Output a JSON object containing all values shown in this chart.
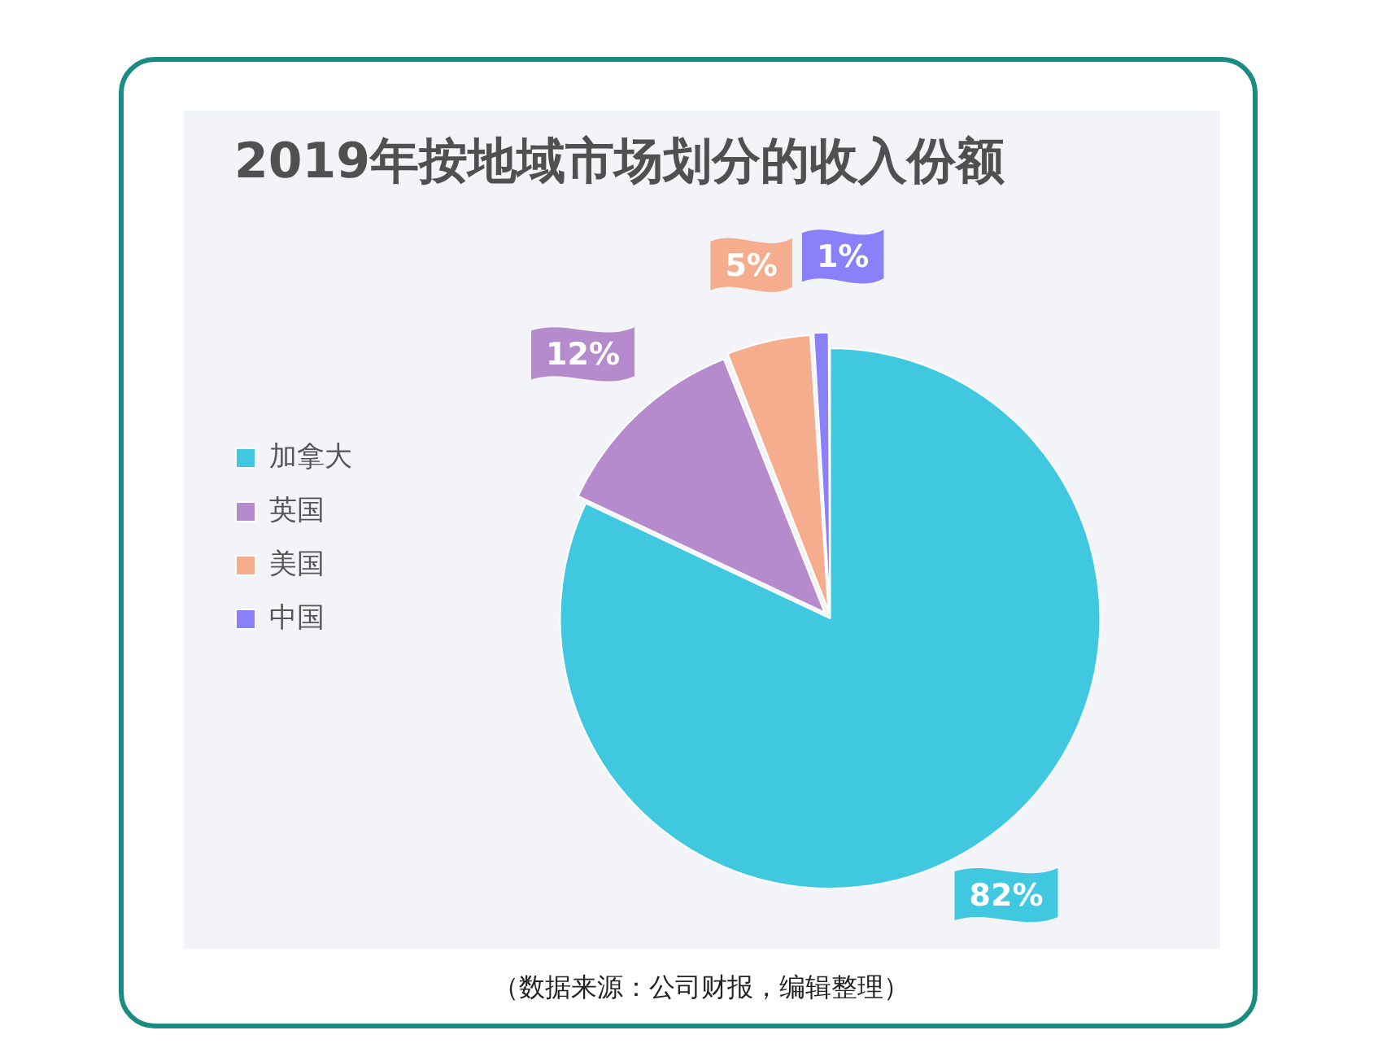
{
  "chart_data": {
    "type": "pie",
    "title": "2019年按地域市场划分的收入份额",
    "categories": [
      "加拿大",
      "英国",
      "美国",
      "中国"
    ],
    "values": [
      82,
      12,
      5,
      1
    ],
    "colors": [
      "#3fc8e0",
      "#b68bcd",
      "#f5ad8d",
      "#8a80fa"
    ],
    "value_labels": [
      "82%",
      "12%",
      "5%",
      "1%"
    ],
    "legend": "left",
    "annotations": [
      "（数据来源：公司财报，编辑整理）"
    ]
  }
}
